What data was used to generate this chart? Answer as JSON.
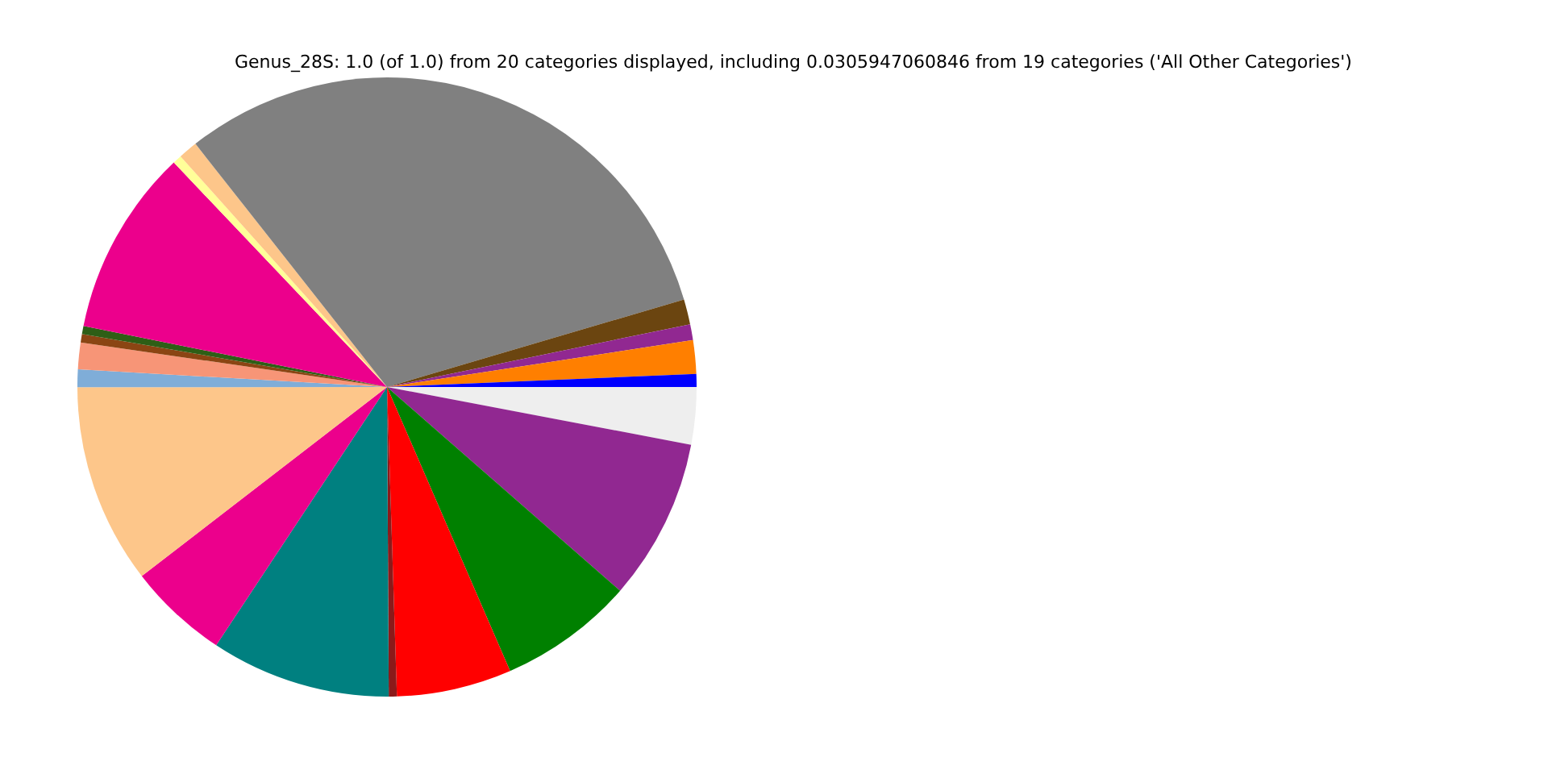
{
  "chart_data": {
    "type": "pie",
    "title": "Genus_28S: 1.0 (of 1.0) from 20 categories displayed, including 0.0305947060846 from 19 categories ('All Other Categories')",
    "categories": [
      null,
      null,
      null,
      null,
      null,
      null,
      null,
      null,
      null,
      null,
      null,
      null,
      null,
      null,
      null,
      null,
      null,
      null,
      null,
      null
    ],
    "values": [
      2.99,
      8.44,
      7.06,
      6.0,
      0.42,
      9.39,
      5.25,
      10.44,
      0.92,
      1.39,
      0.44,
      0.42,
      9.75,
      0.47,
      1.0,
      31.06,
      1.31,
      0.83,
      1.75,
      0.67
    ],
    "colors": [
      "#eeeeee",
      "#912891",
      "#008000",
      "#ff0000",
      "#8b1a1a",
      "#008080",
      "#ec008c",
      "#fdc68a",
      "#7fadd8",
      "#f79577",
      "#8b4513",
      "#2e5e16",
      "#ec008c",
      "#ffff99",
      "#fdc68a",
      "#808080",
      "#6b4510",
      "#912891",
      "#ff7f00",
      "#0000ff"
    ],
    "legend": false
  }
}
